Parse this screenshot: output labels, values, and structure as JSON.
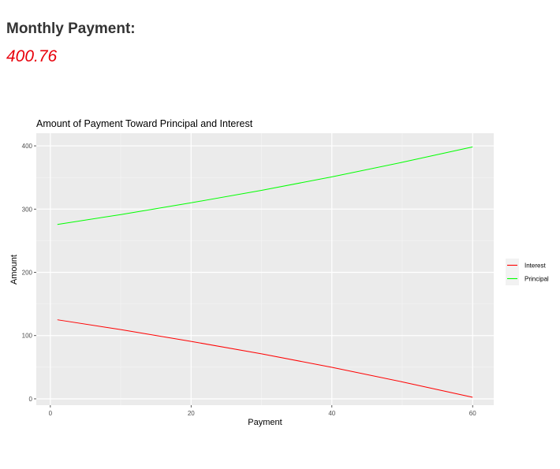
{
  "header": {
    "title": "Monthly Payment:",
    "value": "400.76"
  },
  "chart_data": {
    "type": "line",
    "title": "Amount of Payment Toward Principal and Interest",
    "xlabel": "Payment",
    "ylabel": "Amount",
    "xlim": [
      -2,
      63
    ],
    "ylim": [
      -10,
      420
    ],
    "xticks": [
      0,
      20,
      40,
      60
    ],
    "yticks": [
      0,
      100,
      200,
      300,
      400
    ],
    "grid": true,
    "legend_position": "right",
    "series": [
      {
        "name": "Interest",
        "color": "#ff0000",
        "x": [
          1,
          10,
          20,
          30,
          40,
          50,
          60
        ],
        "y": [
          125.0,
          109.5,
          90.8,
          71.2,
          49.8,
          26.8,
          2.5
        ]
      },
      {
        "name": "Principal",
        "color": "#00ff00",
        "x": [
          1,
          10,
          20,
          30,
          40,
          50,
          60
        ],
        "y": [
          275.8,
          291.3,
          310.0,
          329.6,
          351.0,
          374.0,
          398.3
        ]
      }
    ]
  }
}
